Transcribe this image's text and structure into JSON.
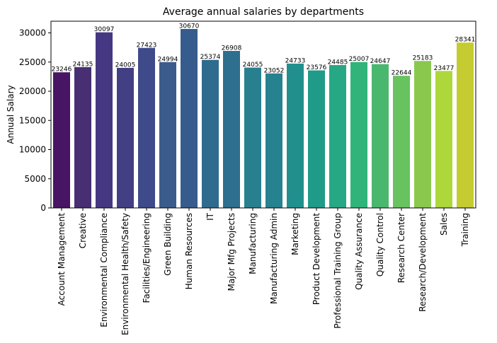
{
  "chart_data": {
    "type": "bar",
    "title": "Average annual salaries by departments",
    "xlabel": "",
    "ylabel": "Annual Salary",
    "ylim": [
      0,
      32000
    ],
    "yticks": [
      0,
      5000,
      10000,
      15000,
      20000,
      25000,
      30000
    ],
    "grid": false,
    "palette": "viridis",
    "categories": [
      "Account Management",
      "Creative",
      "Environmental Compliance",
      "Environmental Health/Safety",
      "Facilities/Engineering",
      "Green Building",
      "Human Resources",
      "IT",
      "Major Mfg Projects",
      "Manufacturing",
      "Manufacturing Admin",
      "Marketing",
      "Product Development",
      "Professional Training Group",
      "Quality Assurance",
      "Quality Control",
      "Research Center",
      "Research/Development",
      "Sales",
      "Training"
    ],
    "values": [
      23246,
      24135,
      30097,
      24005,
      27423,
      24994,
      30670,
      25374,
      26908,
      24055,
      23052,
      24733,
      23576,
      24485,
      25007,
      24647,
      22644,
      25183,
      23477,
      28341
    ],
    "colors": [
      "#471564",
      "#482f73",
      "#453781",
      "#423f85",
      "#3f4a8a",
      "#3a5b8c",
      "#365c8d",
      "#2f6b8e",
      "#2e6e8e",
      "#28808e",
      "#26828e",
      "#21908d",
      "#209a89",
      "#26a884",
      "#30b47a",
      "#4ab76e",
      "#68c25f",
      "#8ac84d",
      "#aed73c",
      "#c4cc31"
    ]
  }
}
